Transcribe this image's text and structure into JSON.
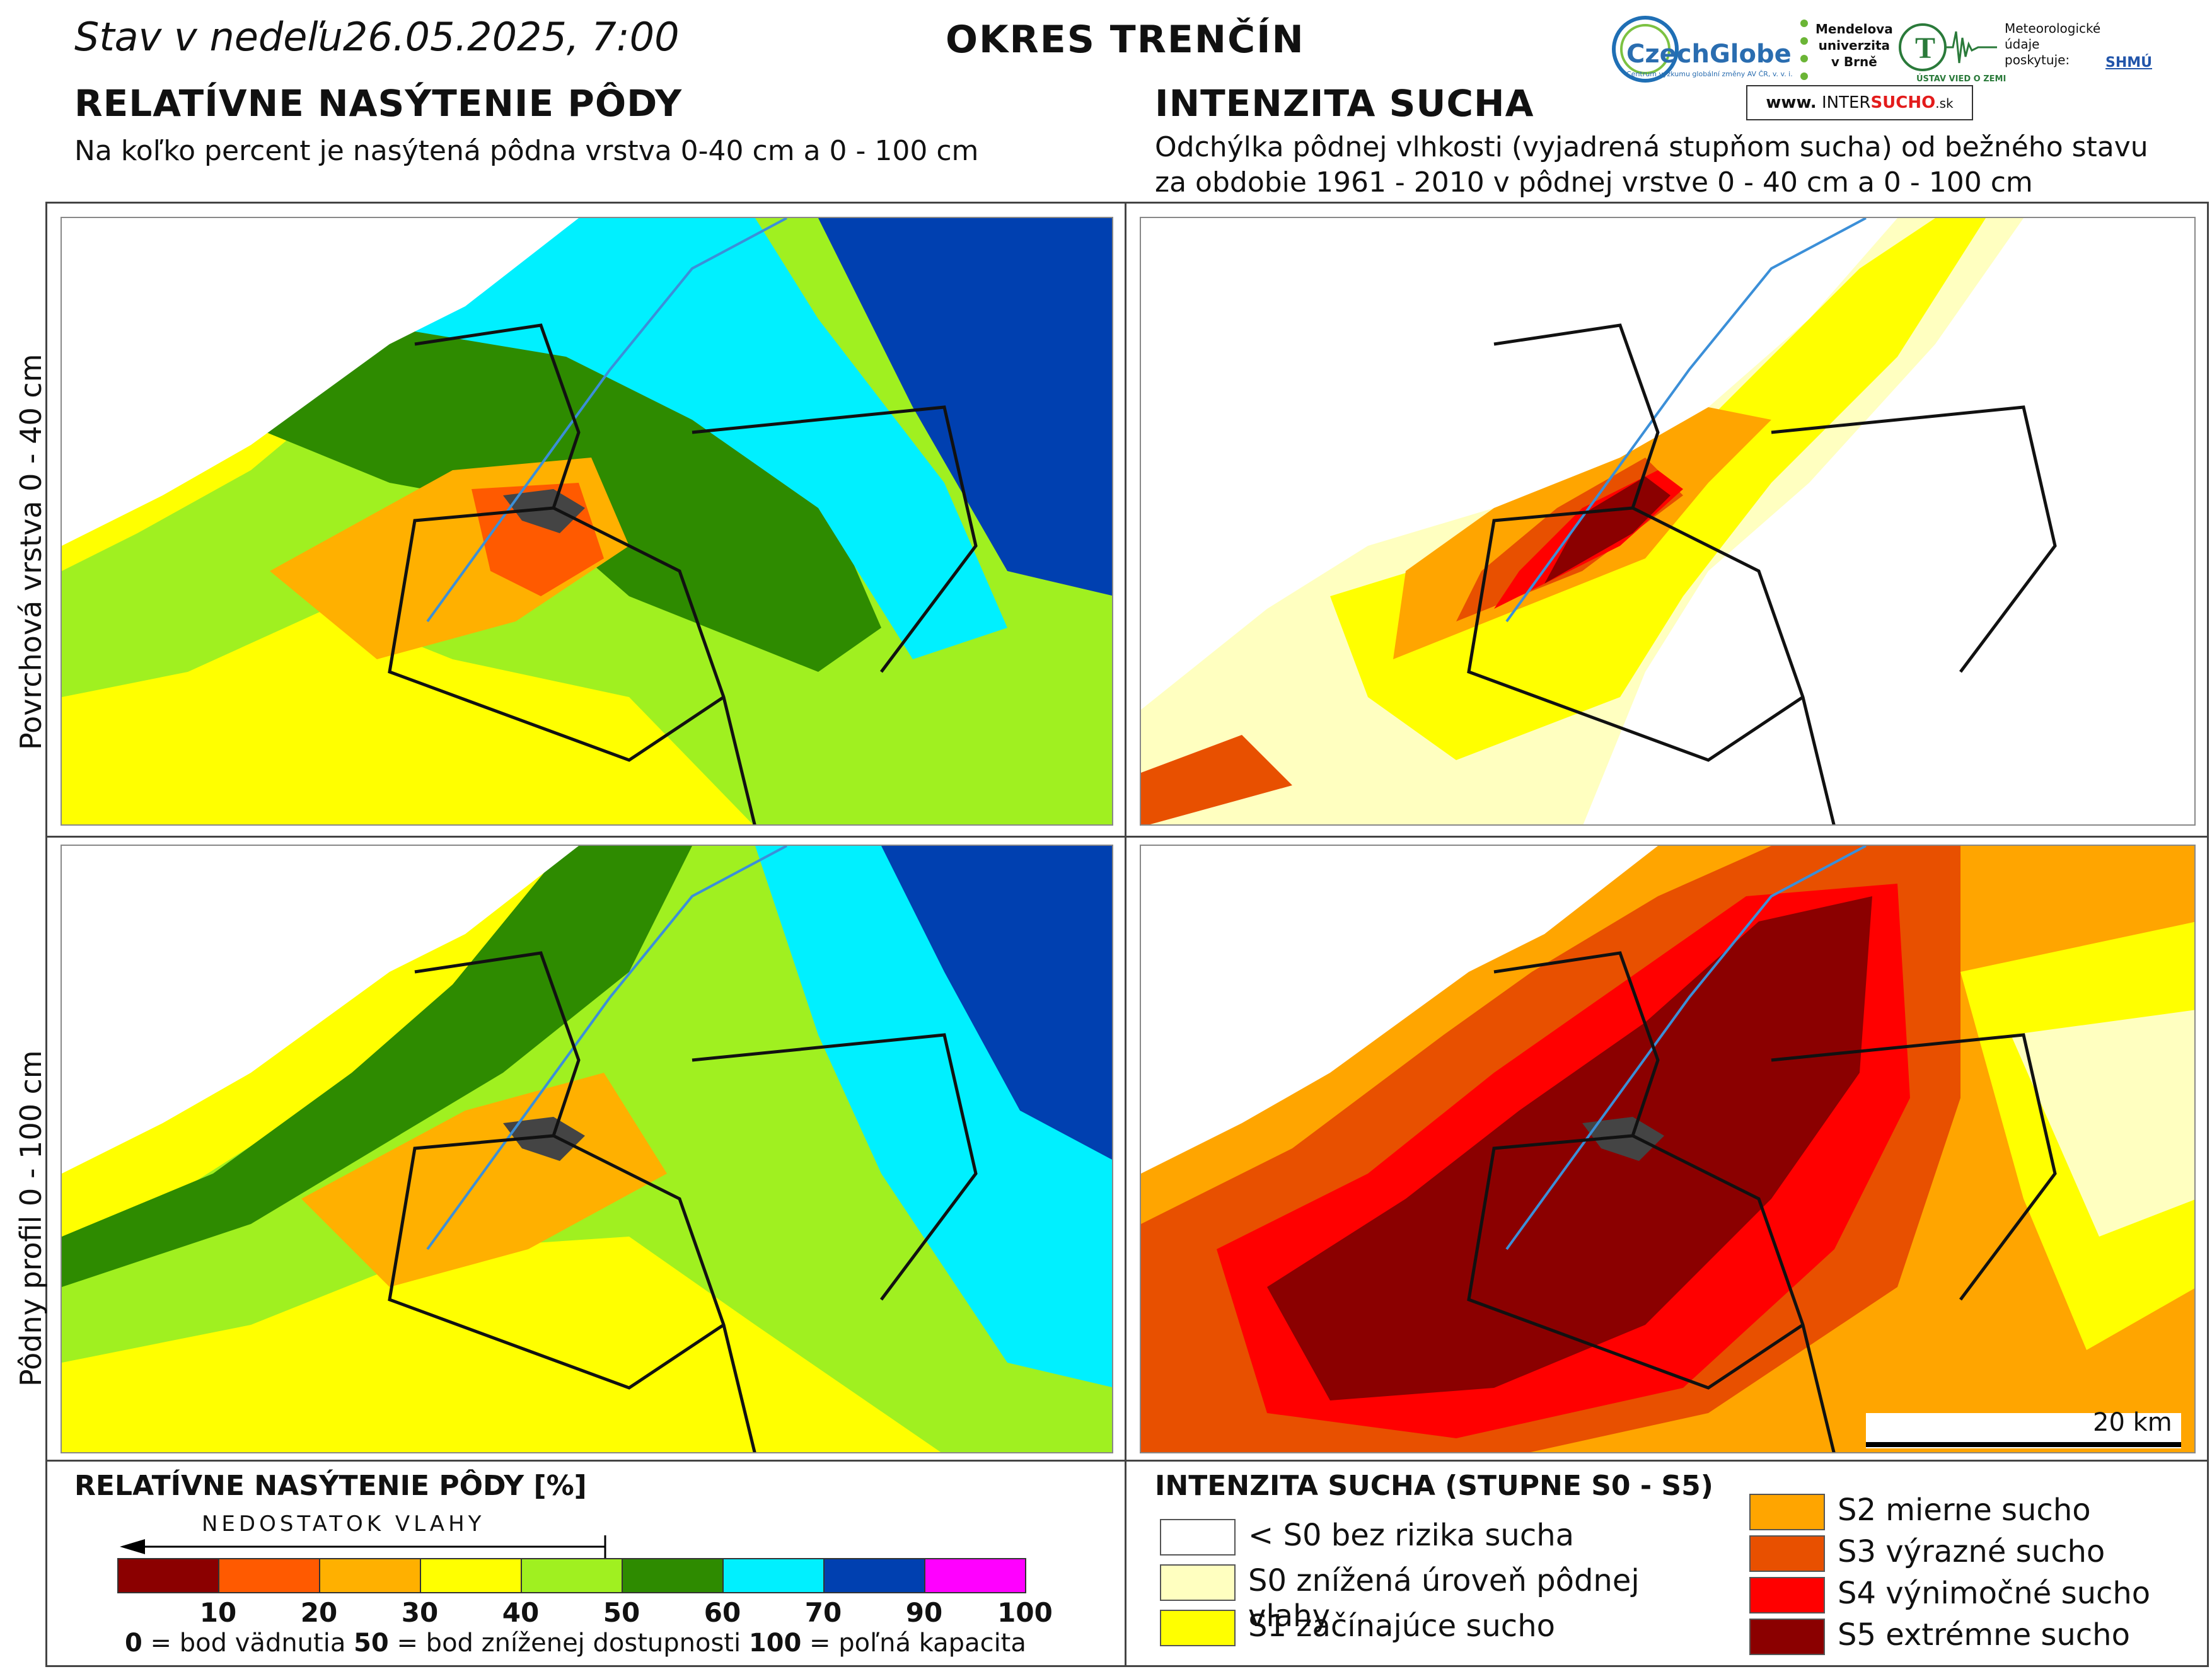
{
  "header": {
    "date_text": "Stav v nedeľu26.05.2025, 7:00",
    "district": "OKRES  TRENČÍN"
  },
  "left_panel": {
    "title": "RELATÍVNE NASÝTENIE PÔDY",
    "subtitle": "Na koľko percent je nasýtená pôdna vrstva 0-40 cm a 0 - 100 cm"
  },
  "right_panel": {
    "title": "INTENZITA SUCHA",
    "subtitle_line1": "Odchýlka pôdnej vlhkosti (vyjadrená stupňom sucha) od bežného stavu",
    "subtitle_line2": "za obdobie 1961 - 2010 v pôdnej vrstve 0 - 40 cm a 0 - 100 cm"
  },
  "row_labels": {
    "top": "Povrchová vrstva 0 - 40 cm",
    "bottom": "Pôdny profil 0 - 100 cm"
  },
  "logos": {
    "czechglobe": "CzechGlobe",
    "czechglobe_sub": "Centrum výzkumu globální změny AV ČR, v. v. i.",
    "mendel_1": "Mendelova",
    "mendel_2": "univerzita",
    "mendel_3": "v Brně",
    "uvz": "ÚSTAV VIED O ZEMI",
    "meteo_1": "Meteorologické",
    "meteo_2": "údaje",
    "meteo_3": "poskytuje:",
    "shmu": "SHMÚ",
    "intersucho_pre": "www.",
    "intersucho_a": "INTER",
    "intersucho_b": "SUCHO",
    "intersucho_c": ".sk"
  },
  "scale_bar": "20 km",
  "legend_left": {
    "title": "RELATÍVNE NASÝTENIE PÔDY [%]",
    "arrow_label": "NEDOSTATOK VLAHY",
    "colors": [
      "#8b0000",
      "#ff5a00",
      "#ffb000",
      "#ffff00",
      "#a0f020",
      "#2e8b00",
      "#00f0ff",
      "#0040b0",
      "#ff00ff"
    ],
    "ticks": [
      "10",
      "20",
      "30",
      "40",
      "50",
      "60",
      "70",
      "90",
      "100"
    ],
    "note_0": "0",
    "note_0_text": " = bod vädnutia ",
    "note_50": "50",
    "note_50_text": " = bod zníženej dostupnosti ",
    "note_100": "100",
    "note_100_text": " = poľná kapacita"
  },
  "legend_right": {
    "title": "INTENZITA SUCHA (STUPNE S0 - S5)",
    "items_col1": [
      {
        "label": "< S0 bez rizika sucha",
        "color": "#ffffff"
      },
      {
        "label": "S0 znížená úroveň pôdnej vlahy",
        "color": "#ffffc0"
      },
      {
        "label": "S1 začínajúce sucho",
        "color": "#ffff00"
      }
    ],
    "items_col2": [
      {
        "label": "S2 mierne sucho",
        "color": "#ffa500"
      },
      {
        "label": "S3 výrazné sucho",
        "color": "#e85000"
      },
      {
        "label": "S4 výnimočné sucho",
        "color": "#ff0000"
      },
      {
        "label": "S5 extrémne sucho",
        "color": "#8b0000"
      }
    ]
  }
}
